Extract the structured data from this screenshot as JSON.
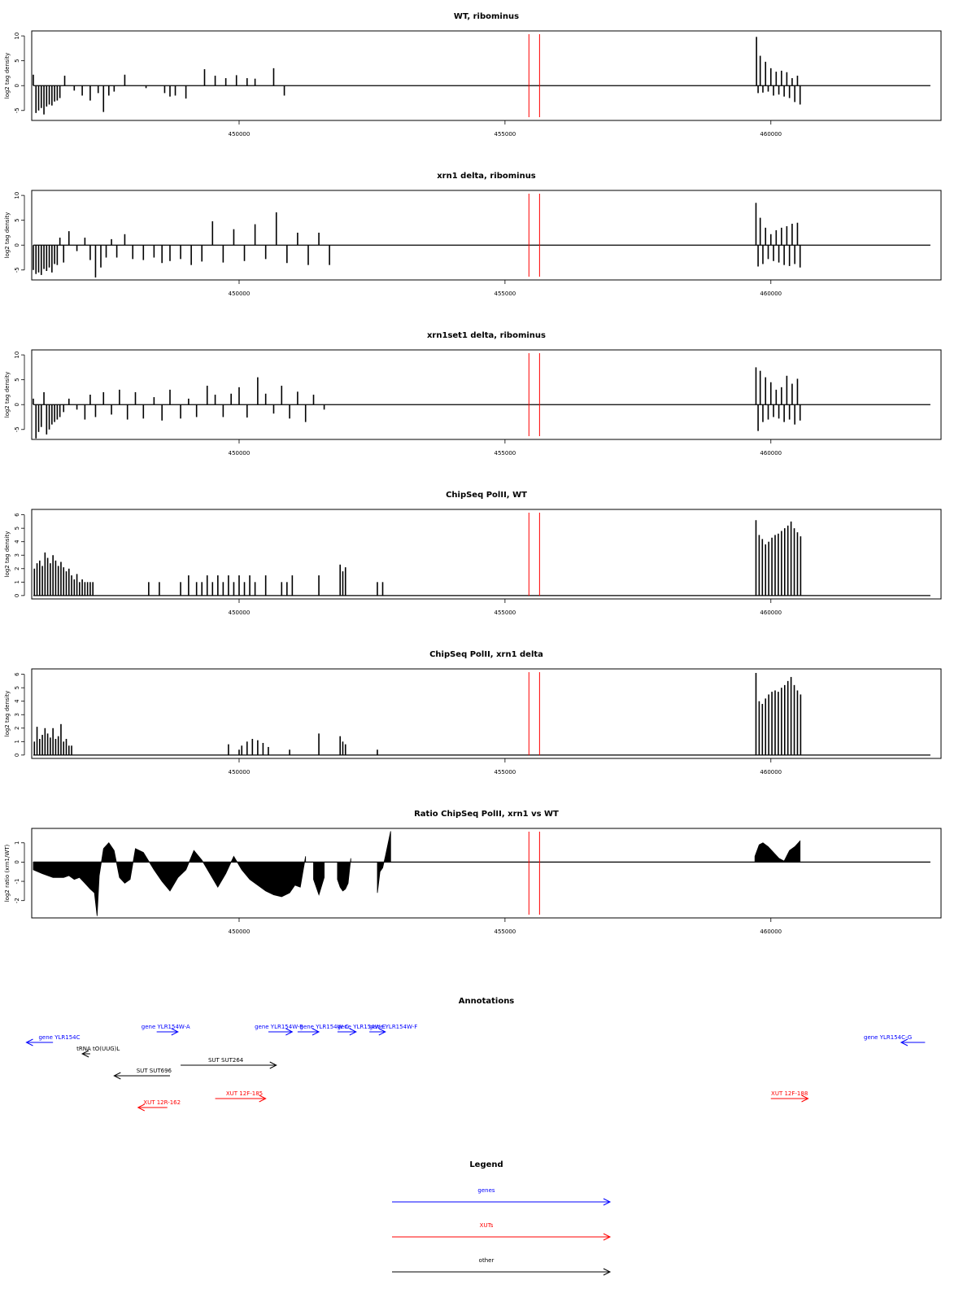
{
  "colors": {
    "gene": "#0000ff",
    "xut": "#ff0000",
    "other": "#000000",
    "marker": "#ff0000",
    "bar": "#000000"
  },
  "x_axis": {
    "range": [
      446100,
      463200
    ],
    "ticks": [
      450000,
      455000,
      460000
    ]
  },
  "markers": [
    455450,
    455650
  ],
  "chart_data": [
    {
      "type": "bar",
      "title": "WT, ribominus",
      "ylabel": "log2 tag density",
      "ylim": [
        -7,
        11
      ],
      "yticks": [
        -5,
        0,
        5,
        10
      ],
      "ytick_labels": [
        "-5",
        "0",
        "5",
        "10"
      ],
      "series": [
        {
          "x": [
            446130,
            446180,
            446230,
            446280,
            446330,
            446380,
            446430,
            446480,
            446530,
            446580,
            446630,
            446720,
            446900,
            447050,
            447200,
            447350,
            447450,
            447550,
            447650
          ],
          "values": [
            2.2,
            -5.5,
            -5,
            -4.5,
            -5.8,
            -4.2,
            -3.8,
            -4,
            -3.2,
            -3,
            -2.5,
            2,
            -1,
            -2,
            -3,
            -1.5,
            -5.3,
            -2,
            -1.2
          ]
        },
        {
          "x": [
            447850,
            448250,
            448600,
            448700,
            448800,
            449000,
            449350,
            449550,
            449750,
            449950,
            450150,
            450300,
            450650,
            450850
          ],
          "values": [
            2.2,
            -0.5,
            -1.5,
            -2.2,
            -2,
            -2.6,
            3.3,
            2,
            1.5,
            2.1,
            1.5,
            1.4,
            3.5,
            -2
          ]
        },
        {
          "x": [
            459730,
            459760,
            459800,
            459850,
            459900,
            459950,
            460000,
            460050,
            460100,
            460150,
            460200,
            460250,
            460300,
            460350,
            460400,
            460450,
            460500,
            460550
          ],
          "values": [
            9.8,
            -1.5,
            6,
            -1.4,
            4.8,
            -1.2,
            3.5,
            -2,
            2.8,
            -1.8,
            3,
            -2.2,
            2.7,
            -2.5,
            1.5,
            -3.3,
            2,
            -3.8
          ]
        }
      ]
    },
    {
      "type": "bar",
      "title": "xrn1 delta, ribominus",
      "ylabel": "log2 tag density",
      "ylim": [
        -7,
        11
      ],
      "yticks": [
        -5,
        0,
        5,
        10
      ],
      "ytick_labels": [
        "-5",
        "0",
        "5",
        "10"
      ],
      "series": [
        {
          "x": [
            446130,
            446180,
            446230,
            446280,
            446330,
            446380,
            446430,
            446480,
            446530,
            446580,
            446630,
            446700,
            446800,
            446950,
            447100,
            447200,
            447300,
            447400,
            447500,
            447600
          ],
          "values": [
            -5,
            -5.8,
            -5.5,
            -6,
            -4.8,
            -5.2,
            -4.5,
            -5.5,
            -3.8,
            -4,
            1.5,
            -3.5,
            2.8,
            -1.2,
            1.5,
            -3,
            -6.5,
            -4.5,
            -2.5,
            1.2
          ]
        },
        {
          "x": [
            447700,
            447850,
            448000,
            448200,
            448400,
            448550,
            448700,
            448900,
            449100,
            449300,
            449500,
            449700,
            449900,
            450100,
            450300,
            450500,
            450700,
            450900,
            451100
          ],
          "values": [
            -2.5,
            2.2,
            -2.8,
            -3,
            -2.5,
            -3.6,
            -3.2,
            -2.8,
            -4,
            -3.3,
            4.8,
            -3.5,
            3.2,
            -3.2,
            4.2,
            -2.8,
            6.6,
            -3.6,
            2.5
          ]
        },
        {
          "x": [
            451300,
            451500,
            451700
          ],
          "values": [
            -4,
            2.5,
            -4
          ]
        },
        {
          "x": [
            459720,
            459760,
            459800,
            459850,
            459900,
            459950,
            460000,
            460050,
            460100,
            460150,
            460200,
            460250,
            460300,
            460350,
            460400,
            460450,
            460500,
            460550
          ],
          "values": [
            8.5,
            -4.3,
            5.5,
            -3.8,
            3.5,
            -2.8,
            2.2,
            -3.2,
            3,
            -3.5,
            3.5,
            -4,
            3.8,
            -4.2,
            4.3,
            -3.8,
            4.5,
            -4.5
          ]
        }
      ]
    },
    {
      "type": "bar",
      "title": "xrn1set1 delta, ribominus",
      "ylabel": "log2 tag density",
      "ylim": [
        -7,
        11
      ],
      "yticks": [
        -5,
        0,
        5,
        10
      ],
      "ytick_labels": [
        "-5",
        "0",
        "5",
        "10"
      ],
      "series": [
        {
          "x": [
            446130,
            446180,
            446230,
            446280,
            446330,
            446380,
            446430,
            446480,
            446530,
            446580,
            446630,
            446700,
            446800,
            446950,
            447100,
            447200,
            447300,
            447450,
            447600,
            447750
          ],
          "values": [
            1.2,
            -6.8,
            -5.5,
            -4.5,
            2.5,
            -6,
            -5,
            -4,
            -3.5,
            -3,
            -2.5,
            -1.5,
            1.2,
            -1,
            -3,
            2,
            -2.5,
            2.5,
            -2,
            3
          ]
        },
        {
          "x": [
            447900,
            448050,
            448200,
            448400,
            448550,
            448700,
            448900,
            449050,
            449200,
            449400,
            449550,
            449700,
            449850,
            450000,
            450150,
            450350,
            450500,
            450650,
            450800,
            450950,
            451100,
            451250,
            451400,
            451600
          ],
          "values": [
            -3,
            2.5,
            -2.8,
            1.5,
            -3.2,
            3,
            -2.8,
            1.2,
            -2.5,
            3.8,
            2,
            -2.5,
            2.2,
            3.5,
            -2.6,
            5.5,
            2.2,
            -1.8,
            3.8,
            -2.8,
            2.6,
            -3.5,
            2,
            -1
          ]
        },
        {
          "x": [
            459720,
            459760,
            459800,
            459850,
            459900,
            459950,
            460000,
            460050,
            460100,
            460150,
            460200,
            460250,
            460300,
            460350,
            460400,
            460450,
            460500,
            460550
          ],
          "values": [
            7.5,
            -5.3,
            6.8,
            -3.5,
            5.5,
            -3,
            4.5,
            -2.5,
            3,
            -2.8,
            3.5,
            -3.5,
            5.8,
            -3,
            4.2,
            -4,
            5.2,
            -3.2
          ]
        }
      ]
    },
    {
      "type": "bar",
      "title": "ChipSeq PolII, WT",
      "ylabel": "log2 tag density",
      "ylim": [
        -0.25,
        6.4
      ],
      "yticks": [
        0,
        1,
        2,
        3,
        4,
        5,
        6
      ],
      "ytick_labels": [
        "0",
        "1",
        "2",
        "3",
        "4",
        "5",
        "6"
      ],
      "series": [
        {
          "x": [
            446150,
            446200,
            446250,
            446300,
            446350,
            446400,
            446450,
            446500,
            446550,
            446600,
            446650,
            446700,
            446750,
            446800,
            446850,
            446900,
            446950,
            447000,
            447050,
            447100,
            447150,
            447200,
            447250
          ],
          "values": [
            2,
            2.4,
            2.6,
            2.2,
            3.2,
            2.8,
            2.4,
            3,
            2.6,
            2.2,
            2.5,
            2.1,
            1.8,
            2,
            1.5,
            1.2,
            1.6,
            1,
            1.2,
            1,
            1,
            1,
            1
          ]
        },
        {
          "x": [
            448300,
            448500,
            448900,
            449050,
            449200,
            449300,
            449400,
            449500,
            449600,
            449700,
            449800,
            449900,
            450000,
            450100,
            450200,
            450300,
            450500,
            450800,
            450900,
            451000,
            451500,
            451900,
            451950,
            452000,
            452600,
            452700
          ],
          "values": [
            1,
            1,
            1,
            1.5,
            1,
            1,
            1.5,
            1,
            1.5,
            1,
            1.5,
            1,
            1.5,
            1,
            1.5,
            1,
            1.5,
            1,
            1,
            1.5,
            1.5,
            2.3,
            1.8,
            2.1,
            1,
            1
          ]
        },
        {
          "x": [
            459720,
            459780,
            459840,
            459900,
            459960,
            460020,
            460080,
            460140,
            460200,
            460260,
            460320,
            460380,
            460440,
            460500,
            460560
          ],
          "values": [
            5.6,
            4.5,
            4.2,
            3.8,
            4,
            4.3,
            4.5,
            4.6,
            4.8,
            5,
            5.2,
            5.5,
            5,
            4.7,
            4.4
          ]
        }
      ]
    },
    {
      "type": "bar",
      "title": "ChipSeq PolII, xrn1 delta",
      "ylabel": "log2 tag density",
      "ylim": [
        -0.25,
        6.4
      ],
      "yticks": [
        0,
        1,
        2,
        3,
        4,
        5,
        6
      ],
      "ytick_labels": [
        "0",
        "1",
        "2",
        "3",
        "4",
        "5",
        "6"
      ],
      "series": [
        {
          "x": [
            446150,
            446200,
            446250,
            446300,
            446350,
            446400,
            446450,
            446500,
            446550,
            446600,
            446650,
            446700,
            446750,
            446800,
            446850
          ],
          "values": [
            1,
            2.1,
            1.2,
            1.5,
            2,
            1.6,
            1.3,
            2,
            1.2,
            1.4,
            2.3,
            1,
            1.2,
            0.7,
            0.7
          ]
        },
        {
          "x": [
            449800,
            450000,
            450050,
            450150,
            450250,
            450350,
            450450,
            450550,
            450950,
            451500,
            451900,
            451950,
            452000,
            452600
          ],
          "values": [
            0.8,
            0.4,
            0.7,
            1,
            1.2,
            1.1,
            0.9,
            0.6,
            0.4,
            1.6,
            1.4,
            1,
            0.8,
            0.4
          ]
        },
        {
          "x": [
            459720,
            459780,
            459840,
            459900,
            459960,
            460020,
            460080,
            460140,
            460200,
            460260,
            460320,
            460380,
            460440,
            460500,
            460560
          ],
          "values": [
            6.1,
            4,
            3.8,
            4.2,
            4.5,
            4.7,
            4.8,
            4.7,
            5,
            5.2,
            5.5,
            5.8,
            5.2,
            4.8,
            4.5
          ]
        }
      ]
    },
    {
      "type": "area",
      "title": "Ratio ChipSeq PolII, xrn1 vs WT",
      "ylabel": "log2 ratio (xrn1/WT)",
      "ylim": [
        -2.9,
        1.75
      ],
      "yticks": [
        -2,
        -1,
        0,
        1
      ],
      "ytick_labels": [
        "-2",
        "-1",
        "0",
        "1"
      ],
      "series": [
        {
          "x": [
            446130,
            446300,
            446500,
            446700,
            446800,
            446900,
            447000,
            447100,
            447200,
            447280,
            447330,
            447370,
            447450,
            447550,
            447650,
            447750,
            447850,
            447950,
            448050,
            448200,
            448400,
            448550,
            448700,
            448850,
            449000,
            449150,
            449300,
            449450,
            449600,
            449750,
            449900,
            450050,
            450200,
            450350,
            450500,
            450650,
            450800,
            450950,
            451050,
            451150,
            451250
          ],
          "values": [
            -0.4,
            -0.6,
            -0.8,
            -0.8,
            -0.7,
            -0.9,
            -0.8,
            -1.1,
            -1.4,
            -1.6,
            -2.8,
            -0.7,
            0.7,
            1,
            0.6,
            -0.8,
            -1.1,
            -0.9,
            0.7,
            0.5,
            -0.4,
            -1,
            -1.5,
            -0.8,
            -0.4,
            0.6,
            0.1,
            -0.6,
            -1.3,
            -0.6,
            0.3,
            -0.4,
            -0.9,
            -1.2,
            -1.5,
            -1.7,
            -1.8,
            -1.6,
            -1.2,
            -1.3,
            0.3
          ]
        },
        {
          "x": [
            451400,
            451500,
            451600
          ],
          "values": [
            -0.9,
            -1.7,
            -0.8
          ]
        },
        {
          "x": [
            451850,
            451900,
            451950,
            452000,
            452050,
            452100
          ],
          "values": [
            -0.9,
            -1.3,
            -1.5,
            -1.4,
            -1.1,
            0.2
          ]
        },
        {
          "x": [
            452600,
            452650,
            452700,
            452750,
            452850
          ],
          "values": [
            -1.6,
            -0.5,
            -0.3,
            0.3,
            1.6
          ]
        },
        {
          "x": [
            459700,
            459780,
            459850,
            459950,
            460050,
            460150,
            460250,
            460350,
            460450,
            460550
          ],
          "values": [
            0.3,
            0.9,
            1,
            0.8,
            0.5,
            0.2,
            0.05,
            0.6,
            0.8,
            1.1
          ]
        }
      ]
    }
  ],
  "annotations": {
    "title": "Annotations",
    "features": [
      {
        "label": "gene YLR154C",
        "type": "gene",
        "x": 446620,
        "row": 1,
        "start": 446500,
        "end": 446000,
        "dir": "left"
      },
      {
        "label": "gene YLR154W-A",
        "type": "gene",
        "x": 448620,
        "row": 0,
        "start": 448450,
        "end": 448850,
        "dir": "right"
      },
      {
        "label": "gene YLR154W-B",
        "type": "gene",
        "x": 450750,
        "row": 0,
        "start": 450550,
        "end": 451000,
        "dir": "right"
      },
      {
        "label": "gene YLR154W-C",
        "type": "gene",
        "x": 451600,
        "row": 0,
        "start": 451100,
        "end": 451500,
        "dir": "right"
      },
      {
        "label": "gene YLR154W-E",
        "type": "gene",
        "x": 452300,
        "row": 0,
        "start": 451850,
        "end": 452200,
        "dir": "right"
      },
      {
        "label": "gene YLR154W-F",
        "type": "gene",
        "x": 452900,
        "row": 0,
        "start": 452450,
        "end": 452750,
        "dir": "right"
      },
      {
        "label": "gene YLR154C-G",
        "type": "gene",
        "x": 462200,
        "row": 1,
        "start": 462900,
        "end": 462450,
        "dir": "left"
      },
      {
        "label": "tRNA tO(UUG)L",
        "type": "other",
        "x": 447350,
        "row": 2,
        "start": 447200,
        "end": 447050,
        "dir": "left"
      },
      {
        "label": "SUT SUT264",
        "type": "other",
        "x": 449750,
        "row": 3,
        "start": 448900,
        "end": 450700,
        "dir": "right"
      },
      {
        "label": "SUT SUT696",
        "type": "other",
        "x": 448400,
        "row": 4,
        "start": 448700,
        "end": 447650,
        "dir": "left"
      },
      {
        "label": "XUT 12F-185",
        "type": "xut",
        "x": 450100,
        "row": 5,
        "start": 449550,
        "end": 450500,
        "dir": "right"
      },
      {
        "label": "XUT 12R-162",
        "type": "xut",
        "x": 448550,
        "row": 6,
        "start": 448650,
        "end": 448100,
        "dir": "left"
      },
      {
        "label": "XUT 12F-188",
        "type": "xut",
        "x": 460350,
        "row": 5,
        "start": 460000,
        "end": 460700,
        "dir": "right"
      }
    ]
  },
  "legend": {
    "title": "Legend",
    "items": [
      {
        "label": "genes",
        "type": "gene"
      },
      {
        "label": "XUTs",
        "type": "xut"
      },
      {
        "label": "other",
        "type": "other"
      }
    ]
  }
}
